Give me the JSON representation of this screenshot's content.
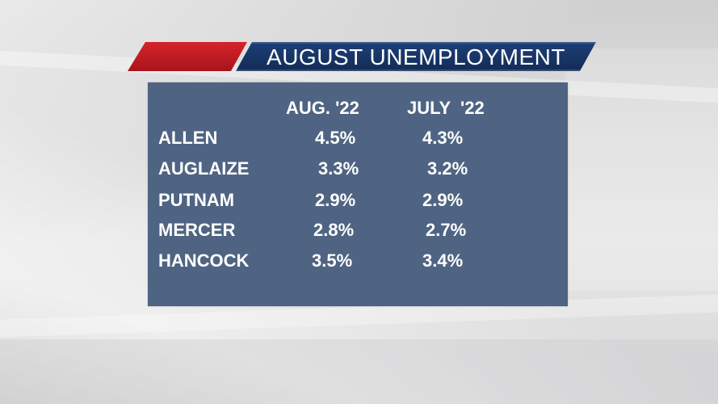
{
  "title": "AUGUST UNEMPLOYMENT",
  "colors": {
    "title_red": "#c41e26",
    "title_blue": "#1a3768",
    "panel": "#4f6482",
    "text": "#ffffff"
  },
  "table": {
    "headers": {
      "aug": "AUG. '22",
      "jul": "JULY  '22"
    },
    "rows": [
      {
        "name": "ALLEN",
        "aug": "4.5%",
        "jul": "4.3%"
      },
      {
        "name": "AUGLAIZE",
        "aug": "3.3%",
        "jul": "3.2%"
      },
      {
        "name": "PUTNAM",
        "aug": "2.9%",
        "jul": "2.9%"
      },
      {
        "name": "MERCER",
        "aug": "2.8%",
        "jul": "2.7%"
      },
      {
        "name": "HANCOCK",
        "aug": "3.5%",
        "jul": "3.4%"
      }
    ]
  }
}
